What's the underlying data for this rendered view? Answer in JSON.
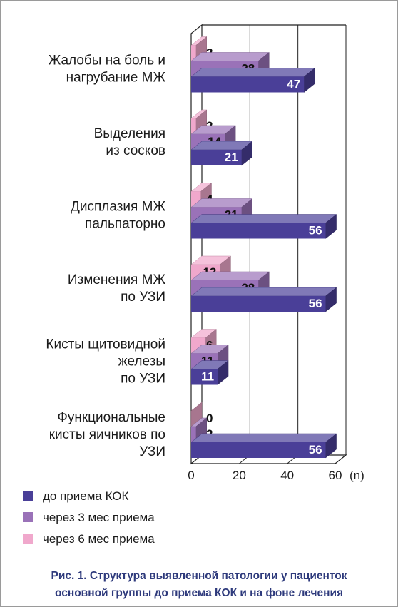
{
  "chart_data": {
    "type": "bar",
    "orientation": "horizontal",
    "categories": [
      [
        "Жалобы на боль и",
        "нагрубание МЖ"
      ],
      [
        "Выделения",
        "из сосков"
      ],
      [
        "Дисплазия МЖ",
        "пальпаторно"
      ],
      [
        "Изменения МЖ",
        "по УЗИ"
      ],
      [
        "Кисты щитовидной",
        "железы",
        "по УЗИ"
      ],
      [
        "Функциональные",
        "кисты яичников по",
        "УЗИ"
      ]
    ],
    "series": [
      {
        "name": "до приема КОК",
        "color": "#4a3f98",
        "values": [
          47,
          21,
          56,
          56,
          11,
          56
        ]
      },
      {
        "name": "через 3 мес приема",
        "color": "#9a72b8",
        "values": [
          28,
          14,
          21,
          28,
          11,
          2
        ]
      },
      {
        "name": "через 6 мес приема",
        "color": "#f0a8cc",
        "values": [
          2,
          2,
          4,
          12,
          6,
          0
        ]
      }
    ],
    "x_ticks": [
      "0",
      "20",
      "40",
      "60"
    ],
    "x_unit": "(n)",
    "xlim": [
      0,
      60
    ],
    "grid": true,
    "legend_position": "bottom-left",
    "caption": [
      "Рис. 1. Структура выявленной патологии у пациенток",
      "основной группы до приема КОК и на фоне лечения"
    ]
  }
}
